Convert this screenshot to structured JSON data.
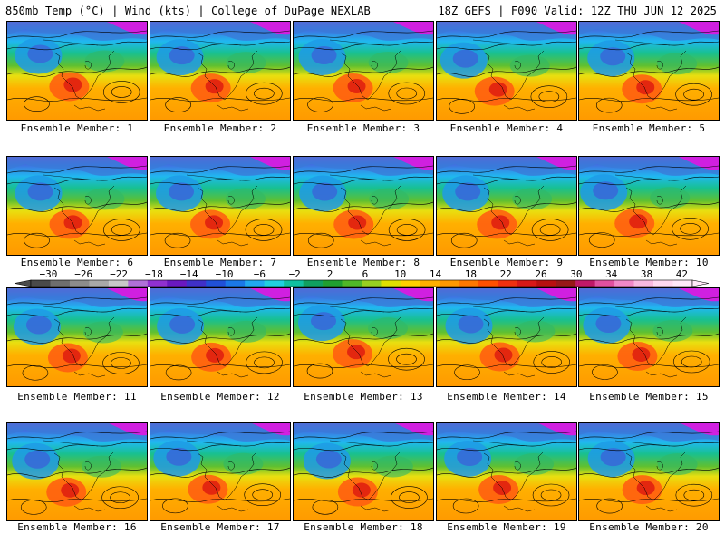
{
  "header": {
    "left": "850mb Temp (°C) | Wind (kts) | College of DuPage NEXLAB",
    "right": "18Z GEFS | F090 Valid: 12Z THU JUN 12 2025"
  },
  "members": [
    "Ensemble Member: 1",
    "Ensemble Member: 2",
    "Ensemble Member: 3",
    "Ensemble Member: 4",
    "Ensemble Member: 5",
    "Ensemble Member: 6",
    "Ensemble Member: 7",
    "Ensemble Member: 8",
    "Ensemble Member: 9",
    "Ensemble Member: 10",
    "Ensemble Member: 11",
    "Ensemble Member: 12",
    "Ensemble Member: 13",
    "Ensemble Member: 14",
    "Ensemble Member: 15",
    "Ensemble Member: 16",
    "Ensemble Member: 17",
    "Ensemble Member: 18",
    "Ensemble Member: 19",
    "Ensemble Member: 20"
  ],
  "colorbar": {
    "tick_labels": [
      "−30",
      "−26",
      "−22",
      "−18",
      "−14",
      "−10",
      "−6",
      "−2",
      "2",
      "6",
      "10",
      "14",
      "18",
      "22",
      "26",
      "30",
      "34",
      "38",
      "42"
    ],
    "colors": [
      "#4a4a4a",
      "#6e6e6e",
      "#8c8c8c",
      "#a8a8a8",
      "#c8c8c8",
      "#b070d8",
      "#9030d0",
      "#6a18c0",
      "#4030c8",
      "#2050d8",
      "#1a78e8",
      "#20a8f0",
      "#20d0e0",
      "#10c0a0",
      "#10a060",
      "#20a030",
      "#50b828",
      "#98d020",
      "#e0e000",
      "#ffd000",
      "#ffb000",
      "#ff9800",
      "#ff7800",
      "#ff5000",
      "#f03010",
      "#d81818",
      "#b81010",
      "#981818",
      "#c01868",
      "#e050a0",
      "#f088c8",
      "#f8b8e0",
      "#ffd8f0",
      "#ffe8f8"
    ]
  }
}
